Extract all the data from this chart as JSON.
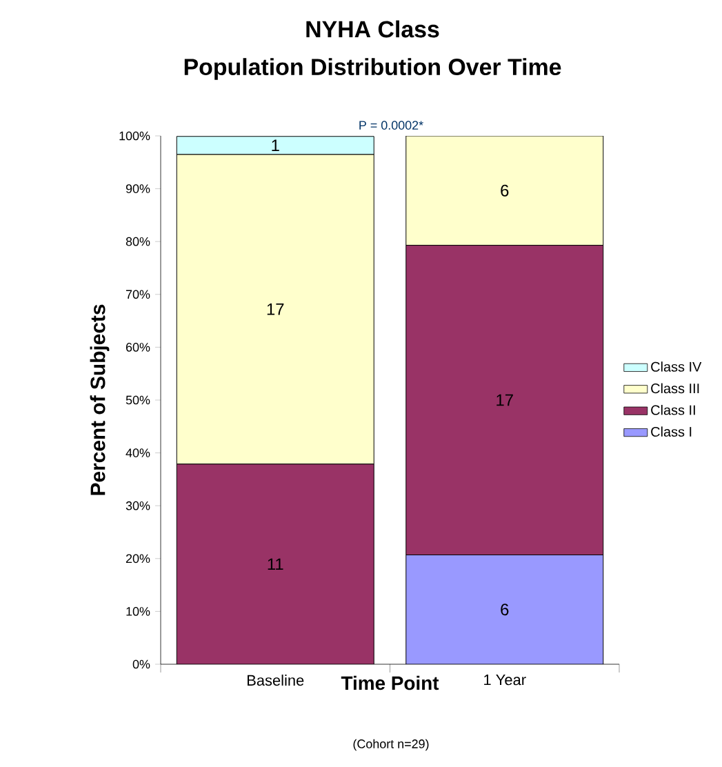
{
  "chart_data": {
    "type": "bar",
    "stacked": true,
    "title": "NYHA Class",
    "subtitle": "Population Distribution Over Time",
    "xlabel": "Time Point",
    "ylabel": "Percent of Subjects",
    "annotations": [
      "P = 0.0002*",
      "(Cohort n=29)",
      "6",
      "11",
      "17",
      "17",
      "6",
      "1"
    ],
    "categories": [
      "Baseline",
      "1 Year"
    ],
    "series": [
      {
        "name": "Class I",
        "color": "#9999ff",
        "values": [
          null,
          20.7
        ]
      },
      {
        "name": "Class II",
        "color": "#993366",
        "values": [
          37.9,
          58.6
        ]
      },
      {
        "name": "Class III",
        "color": "#ffffcc",
        "values": [
          58.6,
          20.7
        ]
      },
      {
        "name": "Class IV",
        "color": "#ccffff",
        "values": [
          3.4,
          null
        ]
      }
    ],
    "ylim": [
      0,
      100
    ],
    "yticks": [
      {
        "value": 0,
        "label": "0%"
      },
      {
        "value": 10,
        "label": "10%"
      },
      {
        "value": 20,
        "label": "20%"
      },
      {
        "value": 30,
        "label": "30%"
      },
      {
        "value": 40,
        "label": "40%"
      },
      {
        "value": 50,
        "label": "50%"
      },
      {
        "value": 60,
        "label": "60%"
      },
      {
        "value": 70,
        "label": "70%"
      },
      {
        "value": 80,
        "label": "80%"
      },
      {
        "value": 90,
        "label": "90%"
      },
      {
        "value": 100,
        "label": "100%"
      }
    ],
    "legend": "right"
  }
}
